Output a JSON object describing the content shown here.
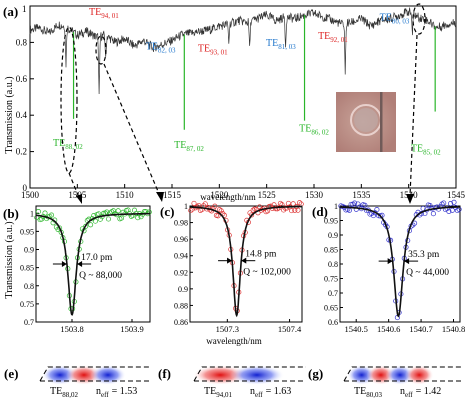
{
  "chart_data": [
    {
      "panel": "(a)",
      "type": "line",
      "xlabel": "wavelength/nm",
      "ylabel": "Transmission (a.u.)",
      "xlim": [
        1500,
        1545
      ],
      "ylim": [
        0,
        1
      ],
      "xticks": [
        "1500",
        "1505",
        "1510",
        "1515",
        "1520",
        "1525",
        "1530",
        "1535",
        "1540",
        "1545"
      ],
      "yticks": [
        "0",
        "0.2",
        "0.4",
        "0.6",
        "0.8",
        "1"
      ],
      "spectrum": {
        "x": [
          1500,
          1501,
          1502,
          1503,
          1504,
          1505,
          1506,
          1507,
          1508,
          1509,
          1510,
          1511,
          1512,
          1513,
          1514,
          1515,
          1516,
          1517,
          1518,
          1519,
          1520,
          1521,
          1522,
          1523,
          1524,
          1525,
          1526,
          1527,
          1528,
          1529,
          1530,
          1531,
          1532,
          1533,
          1534,
          1535,
          1536,
          1537,
          1538,
          1539,
          1540,
          1541,
          1542,
          1543,
          1544,
          1545
        ],
        "y": [
          0.87,
          0.88,
          0.85,
          0.9,
          0.88,
          0.84,
          0.86,
          0.83,
          0.84,
          0.8,
          0.82,
          0.78,
          0.81,
          0.77,
          0.79,
          0.81,
          0.84,
          0.85,
          0.86,
          0.87,
          0.89,
          0.9,
          0.92,
          0.91,
          0.93,
          0.95,
          0.92,
          0.94,
          0.93,
          0.95,
          0.96,
          0.94,
          0.92,
          0.9,
          0.91,
          0.93,
          0.89,
          0.92,
          0.93,
          0.95,
          0.97,
          0.94,
          0.92,
          0.88,
          0.9,
          0.91
        ]
      },
      "dips": [
        {
          "x": 1503.8,
          "depth": 0.68,
          "color": "#222222"
        },
        {
          "x": 1504.6,
          "depth": 0.38,
          "color": "#2ab52a"
        },
        {
          "x": 1507.3,
          "depth": 0.5,
          "color": "#222222"
        },
        {
          "x": 1508.0,
          "depth": 0.7,
          "color": "#222222"
        },
        {
          "x": 1516.3,
          "depth": 0.32,
          "color": "#2ab52a"
        },
        {
          "x": 1521.0,
          "depth": 0.8,
          "color": "#222222"
        },
        {
          "x": 1523.2,
          "depth": 0.76,
          "color": "#222222"
        },
        {
          "x": 1527.0,
          "depth": 0.78,
          "color": "#222222"
        },
        {
          "x": 1529.0,
          "depth": 0.37,
          "color": "#2ab52a"
        },
        {
          "x": 1533.3,
          "depth": 0.62,
          "color": "#222222"
        },
        {
          "x": 1540.4,
          "depth": 0.84,
          "color": "#222222"
        },
        {
          "x": 1542.8,
          "depth": 0.42,
          "color": "#2ab52a"
        }
      ],
      "mode_labels": [
        {
          "name": "TE",
          "sub": "94, 01",
          "color": "#dd2222",
          "x": 1507.8,
          "y": 0.95
        },
        {
          "name": "TE",
          "sub": "82, 03",
          "color": "#2277cc",
          "x": 1513.8,
          "y": 0.76
        },
        {
          "name": "TE",
          "sub": "93, 01",
          "color": "#dd2222",
          "x": 1519.3,
          "y": 0.75
        },
        {
          "name": "TE",
          "sub": "81, 03",
          "color": "#2277cc",
          "x": 1526.5,
          "y": 0.78
        },
        {
          "name": "TE",
          "sub": "92, 01",
          "color": "#dd2222",
          "x": 1532.0,
          "y": 0.82
        },
        {
          "name": "TE",
          "sub": "80, 03",
          "color": "#2277cc",
          "x": 1538.5,
          "y": 0.92
        },
        {
          "name": "TE",
          "sub": "88, 02",
          "color": "#2ab52a",
          "x": 1504.0,
          "y": 0.23
        },
        {
          "name": "TE",
          "sub": "87, 02",
          "color": "#2ab52a",
          "x": 1516.8,
          "y": 0.22
        },
        {
          "name": "TE",
          "sub": "86, 02",
          "color": "#2ab52a",
          "x": 1530.0,
          "y": 0.31
        },
        {
          "name": "TE",
          "sub": "85, 02",
          "color": "#2ab52a",
          "x": 1541.8,
          "y": 0.2
        }
      ]
    },
    {
      "panel": "(b)",
      "type": "scatter",
      "ylabel": "Transmission (a.u.)",
      "xticks": [
        "1503.8",
        "1503.9"
      ],
      "yticks": [
        "0.7",
        "0.75",
        "0.8",
        "0.85",
        "0.9",
        "0.95",
        "1"
      ],
      "xlim": [
        1503.74,
        1503.93
      ],
      "ylim": [
        0.7,
        1.02
      ],
      "center": 1503.8,
      "min_y": 0.72,
      "fwhm_nm": 0.017,
      "point_color": "#2ab52a",
      "linewidth_label": "17.0 pm",
      "q_label": "Q ~ 88,000"
    },
    {
      "panel": "(c)",
      "type": "scatter",
      "xlabel": "wavelength/nm",
      "xticks": [
        "1507.3",
        "1507.4"
      ],
      "yticks": [
        "0.86",
        "0.88",
        "0.9",
        "0.92",
        "0.94",
        "0.96",
        "0.98",
        "1"
      ],
      "xlim": [
        1507.24,
        1507.42
      ],
      "ylim": [
        0.86,
        1.0
      ],
      "center": 1507.315,
      "min_y": 0.868,
      "fwhm_nm": 0.0148,
      "point_color": "#dd3333",
      "linewidth_label": "14.8 pm",
      "q_label": "Q ~ 102,000"
    },
    {
      "panel": "(d)",
      "type": "scatter",
      "xticks": [
        "1540.5",
        "1540.6",
        "1540.7",
        "1540.8"
      ],
      "yticks": [
        "0.6",
        "0.65",
        "0.7",
        "0.75",
        "0.8",
        "0.85",
        "0.9",
        "0.95",
        "1"
      ],
      "xlim": [
        1540.45,
        1540.82
      ],
      "ylim": [
        0.6,
        1.0
      ],
      "center": 1540.63,
      "min_y": 0.62,
      "fwhm_nm": 0.0353,
      "point_color": "#3333cc",
      "linewidth_label": "35.3 pm",
      "q_label": "Q ~ 44,000"
    }
  ],
  "mode_profiles": [
    {
      "panel": "(e)",
      "mode": "TE",
      "mode_sub": "88,02",
      "neff_label": "n",
      "neff_sub": "eff",
      "neff_value": "= 1.53",
      "lobes": [
        -1,
        1,
        -1
      ]
    },
    {
      "panel": "(f)",
      "mode": "TE",
      "mode_sub": "94,01",
      "neff_label": "n",
      "neff_sub": "eff",
      "neff_value": "= 1.63",
      "lobes": [
        1,
        -1
      ]
    },
    {
      "panel": "(g)",
      "mode": "TE",
      "mode_sub": "80,03",
      "neff_label": "n",
      "neff_sub": "eff",
      "neff_value": "= 1.42",
      "lobes": [
        -1,
        1,
        -1,
        1
      ]
    }
  ],
  "colors": {
    "red": "#dd2222",
    "blue": "#2277cc",
    "green": "#2ab52a",
    "fit": "#111111"
  }
}
